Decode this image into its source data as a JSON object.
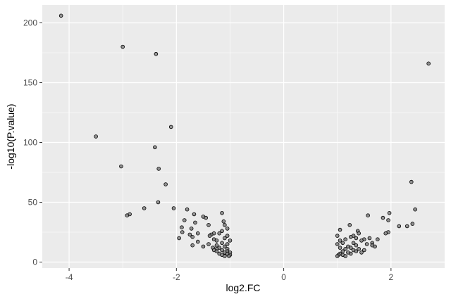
{
  "chart_data": {
    "type": "scatter",
    "title": "",
    "xlabel": "log2.FC",
    "ylabel": "-log10(P.value)",
    "xlim": [
      -4.5,
      3.0
    ],
    "ylim": [
      -5,
      215
    ],
    "x_ticks": [
      -4,
      -2,
      0,
      2
    ],
    "x_tick_labels": [
      "-4",
      "-2",
      "0",
      "2"
    ],
    "y_ticks": [
      0,
      50,
      100,
      150,
      200
    ],
    "y_tick_labels": [
      "0",
      "50",
      "100",
      "150",
      "200"
    ],
    "grid": true,
    "panel_background": "#ebebeb",
    "grid_color": "#ffffff",
    "point_fill": "#7f7f7f",
    "point_stroke": "#000000",
    "series": [
      {
        "values": [
          {
            "x": -4.15,
            "y": 206
          },
          {
            "x": -3.0,
            "y": 180
          },
          {
            "x": -2.38,
            "y": 174
          },
          {
            "x": 2.7,
            "y": 166
          },
          {
            "x": -2.1,
            "y": 113
          },
          {
            "x": -3.5,
            "y": 105
          },
          {
            "x": -2.4,
            "y": 96
          },
          {
            "x": -3.03,
            "y": 80
          },
          {
            "x": -2.33,
            "y": 78
          },
          {
            "x": -2.2,
            "y": 65
          },
          {
            "x": 2.38,
            "y": 67
          },
          {
            "x": -2.34,
            "y": 50
          },
          {
            "x": -2.6,
            "y": 45
          },
          {
            "x": -2.05,
            "y": 45
          },
          {
            "x": -1.8,
            "y": 44
          },
          {
            "x": 2.45,
            "y": 44
          },
          {
            "x": -2.87,
            "y": 40
          },
          {
            "x": -2.92,
            "y": 39
          },
          {
            "x": -1.15,
            "y": 41
          },
          {
            "x": 1.97,
            "y": 41
          },
          {
            "x": -1.67,
            "y": 40
          },
          {
            "x": 1.57,
            "y": 39
          },
          {
            "x": -1.5,
            "y": 38
          },
          {
            "x": -1.45,
            "y": 37
          },
          {
            "x": 1.85,
            "y": 37
          },
          {
            "x": -1.85,
            "y": 35
          },
          {
            "x": -1.12,
            "y": 34
          },
          {
            "x": 1.95,
            "y": 35
          },
          {
            "x": -1.65,
            "y": 33
          },
          {
            "x": -1.1,
            "y": 31
          },
          {
            "x": 2.4,
            "y": 32
          },
          {
            "x": -1.4,
            "y": 31
          },
          {
            "x": 1.23,
            "y": 31
          },
          {
            "x": 2.15,
            "y": 30
          },
          {
            "x": 2.3,
            "y": 30
          },
          {
            "x": -1.05,
            "y": 28
          },
          {
            "x": -1.9,
            "y": 29
          },
          {
            "x": 1.05,
            "y": 27
          },
          {
            "x": -1.72,
            "y": 28
          },
          {
            "x": 1.38,
            "y": 26
          },
          {
            "x": -1.15,
            "y": 26
          },
          {
            "x": 1.95,
            "y": 25
          },
          {
            "x": -1.89,
            "y": 25
          },
          {
            "x": 1.9,
            "y": 24
          },
          {
            "x": -1.3,
            "y": 24
          },
          {
            "x": -1.2,
            "y": 24
          },
          {
            "x": -1.6,
            "y": 24
          },
          {
            "x": 1.4,
            "y": 24
          },
          {
            "x": -1.75,
            "y": 23
          },
          {
            "x": -1.35,
            "y": 23
          },
          {
            "x": -1.38,
            "y": 22
          },
          {
            "x": 1.3,
            "y": 22
          },
          {
            "x": -1.05,
            "y": 22
          },
          {
            "x": 1.0,
            "y": 22
          },
          {
            "x": -1.7,
            "y": 21
          },
          {
            "x": 1.25,
            "y": 21
          },
          {
            "x": -1.95,
            "y": 20
          },
          {
            "x": -1.1,
            "y": 20
          },
          {
            "x": 1.6,
            "y": 20
          },
          {
            "x": 1.35,
            "y": 20
          },
          {
            "x": -1.3,
            "y": 19
          },
          {
            "x": 1.15,
            "y": 19
          },
          {
            "x": 1.5,
            "y": 19
          },
          {
            "x": 1.75,
            "y": 19
          },
          {
            "x": -1.25,
            "y": 18
          },
          {
            "x": -1.0,
            "y": 18
          },
          {
            "x": 1.05,
            "y": 18
          },
          {
            "x": 1.45,
            "y": 18
          },
          {
            "x": -1.6,
            "y": 17
          },
          {
            "x": -1.15,
            "y": 16
          },
          {
            "x": 1.1,
            "y": 16
          },
          {
            "x": 1.3,
            "y": 16
          },
          {
            "x": 1.65,
            "y": 16
          },
          {
            "x": -1.4,
            "y": 15
          },
          {
            "x": -1.05,
            "y": 15
          },
          {
            "x": 1.0,
            "y": 15
          },
          {
            "x": 1.55,
            "y": 15
          },
          {
            "x": -1.7,
            "y": 14
          },
          {
            "x": -1.25,
            "y": 14
          },
          {
            "x": 1.35,
            "y": 14
          },
          {
            "x": 1.65,
            "y": 14
          },
          {
            "x": -1.5,
            "y": 13
          },
          {
            "x": -1.1,
            "y": 13
          },
          {
            "x": 1.2,
            "y": 13
          },
          {
            "x": 1.7,
            "y": 13
          },
          {
            "x": -1.32,
            "y": 12
          },
          {
            "x": -1.2,
            "y": 12
          },
          {
            "x": 1.05,
            "y": 12
          },
          {
            "x": 1.25,
            "y": 12
          },
          {
            "x": -1.25,
            "y": 11
          },
          {
            "x": -1.05,
            "y": 11
          },
          {
            "x": 1.15,
            "y": 11
          },
          {
            "x": 1.4,
            "y": 11
          },
          {
            "x": -1.3,
            "y": 10
          },
          {
            "x": -1.15,
            "y": 10
          },
          {
            "x": 1.3,
            "y": 10
          },
          {
            "x": 1.5,
            "y": 10
          },
          {
            "x": -1.25,
            "y": 9
          },
          {
            "x": -1.05,
            "y": 9
          },
          {
            "x": 1.1,
            "y": 9
          },
          {
            "x": 1.35,
            "y": 9
          },
          {
            "x": -1.1,
            "y": 8
          },
          {
            "x": -1.0,
            "y": 8
          },
          {
            "x": 1.2,
            "y": 8
          },
          {
            "x": 1.45,
            "y": 8
          },
          {
            "x": -1.2,
            "y": 7
          },
          {
            "x": -1.05,
            "y": 7
          },
          {
            "x": 1.05,
            "y": 7
          },
          {
            "x": 1.25,
            "y": 7
          },
          {
            "x": -1.15,
            "y": 6
          },
          {
            "x": -1.0,
            "y": 6
          },
          {
            "x": 1.02,
            "y": 6
          },
          {
            "x": 1.1,
            "y": 6
          },
          {
            "x": -1.1,
            "y": 5
          },
          {
            "x": -1.02,
            "y": 5
          },
          {
            "x": 1.0,
            "y": 5
          },
          {
            "x": 1.15,
            "y": 5
          }
        ]
      }
    ]
  }
}
